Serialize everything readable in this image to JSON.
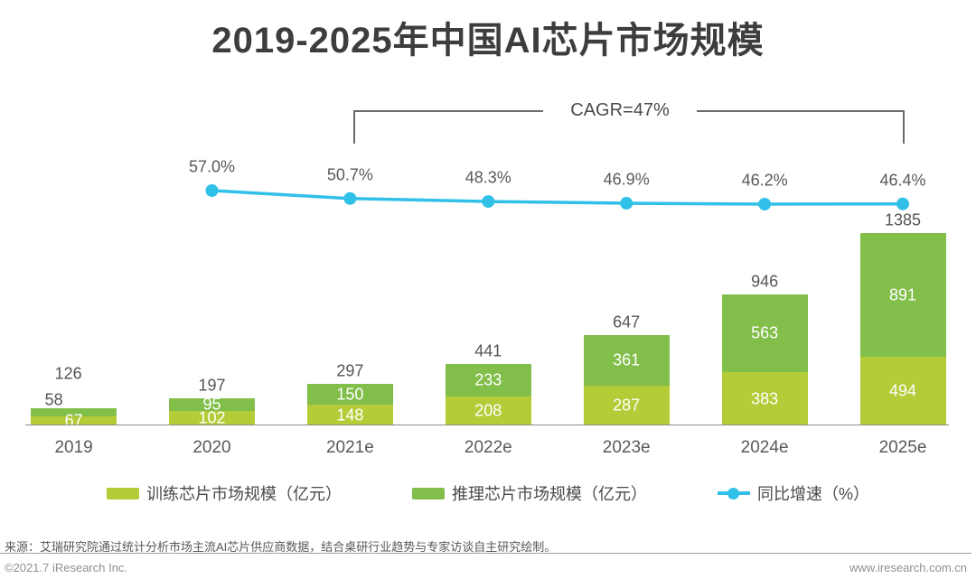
{
  "title": "2019-2025年中国AI芯片市场规模",
  "cagr": {
    "label": "CAGR=47%"
  },
  "chart_data": {
    "type": "bar",
    "subtype": "stacked-bars-with-growth-line",
    "categories": [
      "2019",
      "2020",
      "2021e",
      "2022e",
      "2023e",
      "2024e",
      "2025e"
    ],
    "series": [
      {
        "name": "训练芯片市场规模（亿元）",
        "values": [
          67,
          102,
          148,
          208,
          287,
          383,
          494
        ],
        "color": "#b4cc38"
      },
      {
        "name": "推理芯片市场规模（亿元）",
        "values": [
          58,
          95,
          150,
          233,
          361,
          563,
          891
        ],
        "color": "#82be4a"
      }
    ],
    "totals": [
      126,
      197,
      297,
      441,
      647,
      946,
      1385
    ],
    "line": {
      "name": "同比增速（%）",
      "values": [
        null,
        57.0,
        50.7,
        48.3,
        46.9,
        46.2,
        46.4
      ],
      "labels": [
        "",
        "57.0%",
        "50.7%",
        "48.3%",
        "46.9%",
        "46.2%",
        "46.4%"
      ],
      "color": "#31c0e7"
    },
    "annotation": "CAGR=47%",
    "annotation_span": [
      "2021e",
      "2025e"
    ],
    "ylim": [
      0,
      1450
    ],
    "grid": false,
    "legend_position": "bottom"
  },
  "legend": {
    "items": [
      {
        "label": "训练芯片市场规模（亿元）",
        "swatch": "square",
        "color": "#b4cc38"
      },
      {
        "label": "推理芯片市场规模（亿元）",
        "swatch": "square",
        "color": "#82be4a"
      },
      {
        "label": "同比增速（%）",
        "swatch": "line-dot",
        "color": "#31c0e7"
      }
    ]
  },
  "footer": {
    "source": "来源：艾瑞研究院通过统计分析市场主流AI芯片供应商数据，结合桌研行业趋势与专家访谈自主研究绘制。",
    "copyright": "©2021.7 iResearch Inc.",
    "website": "www.iresearch.com.cn"
  }
}
